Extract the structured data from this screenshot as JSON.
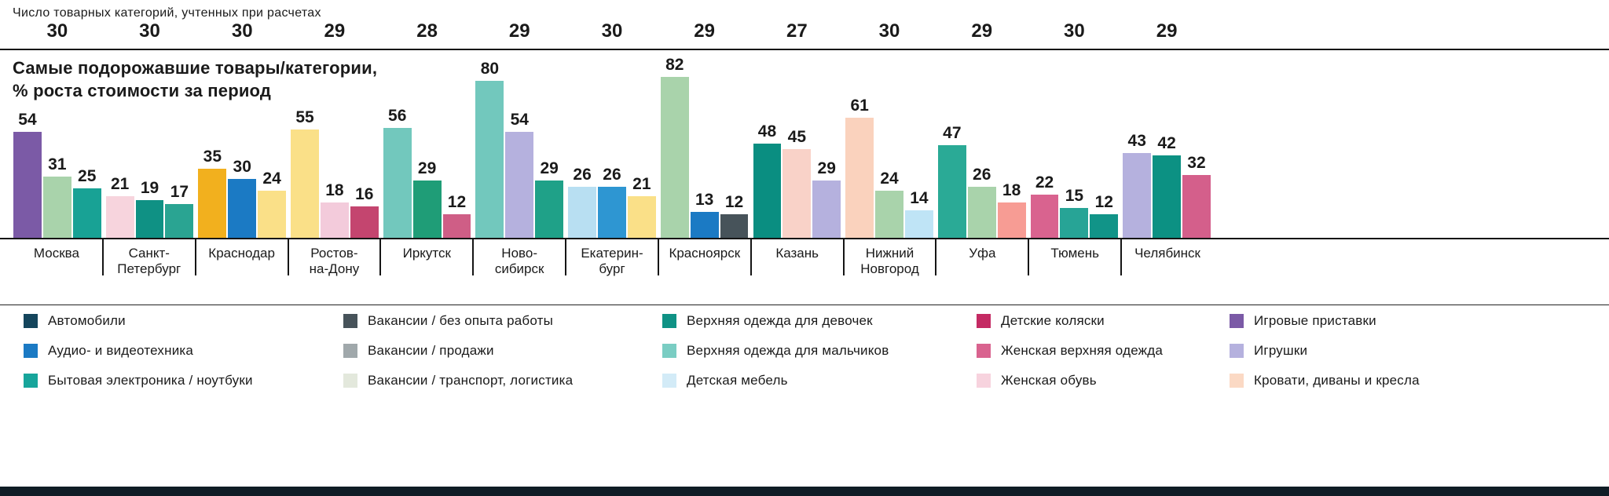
{
  "header": {
    "title": "Число товарных категорий, учтенных при расчетах"
  },
  "chart_data": {
    "type": "bar",
    "title_lines": [
      "Самые подорожавшие товары/категории,",
      "% роста стоимости за период"
    ],
    "unit": "%",
    "ylim": [
      0,
      82
    ],
    "grid": false,
    "legend_position": "bottom",
    "cities": [
      {
        "name": "Москва",
        "label_lines": [
          "Москва"
        ],
        "categories_count": 30,
        "bars": [
          {
            "value": 54,
            "color": "#7b5aa6"
          },
          {
            "value": 31,
            "color": "#a9d3ab"
          },
          {
            "value": 25,
            "color": "#18a295"
          }
        ]
      },
      {
        "name": "Санкт-Петербург",
        "label_lines": [
          "Санкт-",
          "Петербург"
        ],
        "categories_count": 30,
        "bars": [
          {
            "value": 21,
            "color": "#f7d4dd"
          },
          {
            "value": 19,
            "color": "#0f9184"
          },
          {
            "value": 17,
            "color": "#2aa492"
          }
        ]
      },
      {
        "name": "Краснодар",
        "label_lines": [
          "Краснодар"
        ],
        "categories_count": 30,
        "bars": [
          {
            "value": 35,
            "color": "#f2b01e"
          },
          {
            "value": 30,
            "color": "#1b7ac4"
          },
          {
            "value": 24,
            "color": "#fae088"
          }
        ]
      },
      {
        "name": "Ростов-на-Дону",
        "label_lines": [
          "Ростов-",
          "на-Дону"
        ],
        "categories_count": 29,
        "bars": [
          {
            "value": 55,
            "color": "#fae088"
          },
          {
            "value": 18,
            "color": "#f3cbdb"
          },
          {
            "value": 16,
            "color": "#c4456f"
          }
        ]
      },
      {
        "name": "Иркутск",
        "label_lines": [
          "Иркутск"
        ],
        "categories_count": 28,
        "bars": [
          {
            "value": 56,
            "color": "#72c8bd"
          },
          {
            "value": 29,
            "color": "#1f9d77"
          },
          {
            "value": 12,
            "color": "#cf5e86"
          }
        ]
      },
      {
        "name": "Новосибирск",
        "label_lines": [
          "Ново-",
          "сибирск"
        ],
        "categories_count": 29,
        "bars": [
          {
            "value": 80,
            "color": "#72c8bd"
          },
          {
            "value": 54,
            "color": "#b5b1de"
          },
          {
            "value": 29,
            "color": "#1fa188"
          }
        ]
      },
      {
        "name": "Екатеринбург",
        "label_lines": [
          "Екатерин-",
          "бург"
        ],
        "categories_count": 30,
        "bars": [
          {
            "value": 26,
            "color": "#b8dff2"
          },
          {
            "value": 26,
            "color": "#2e96d2"
          },
          {
            "value": 21,
            "color": "#fae088"
          }
        ]
      },
      {
        "name": "Красноярск",
        "label_lines": [
          "Красноярск"
        ],
        "categories_count": 29,
        "bars": [
          {
            "value": 82,
            "color": "#a9d3ab"
          },
          {
            "value": 13,
            "color": "#1b7ac4"
          },
          {
            "value": 12,
            "color": "#47535a"
          }
        ]
      },
      {
        "name": "Казань",
        "label_lines": [
          "Казань"
        ],
        "categories_count": 27,
        "bars": [
          {
            "value": 48,
            "color": "#0a8e81"
          },
          {
            "value": 45,
            "color": "#f9d2c8"
          },
          {
            "value": 29,
            "color": "#b5b1de"
          }
        ]
      },
      {
        "name": "Нижний Новгород",
        "label_lines": [
          "Нижний",
          "Новгород"
        ],
        "categories_count": 30,
        "bars": [
          {
            "value": 61,
            "color": "#fad2bd"
          },
          {
            "value": 24,
            "color": "#a9d3ab"
          },
          {
            "value": 14,
            "color": "#bfe4f6"
          }
        ]
      },
      {
        "name": "Уфа",
        "label_lines": [
          "Уфа"
        ],
        "categories_count": 29,
        "bars": [
          {
            "value": 47,
            "color": "#2aaa96"
          },
          {
            "value": 26,
            "color": "#a9d3ab"
          },
          {
            "value": 18,
            "color": "#f79c94"
          }
        ]
      },
      {
        "name": "Тюмень",
        "label_lines": [
          "Тюмень"
        ],
        "categories_count": 30,
        "bars": [
          {
            "value": 22,
            "color": "#d9638f"
          },
          {
            "value": 15,
            "color": "#27a496"
          },
          {
            "value": 12,
            "color": "#119488"
          }
        ]
      },
      {
        "name": "Челябинск",
        "label_lines": [
          "Челябинск"
        ],
        "categories_count": 29,
        "bars": [
          {
            "value": 43,
            "color": "#b5b1de"
          },
          {
            "value": 42,
            "color": "#0c9183"
          },
          {
            "value": 32,
            "color": "#d45f8b"
          }
        ]
      }
    ]
  },
  "legend": {
    "columns": [
      [
        {
          "label": "Автомобили",
          "color": "#14455c"
        },
        {
          "label": "Аудио- и видеотехника",
          "color": "#1b7ac4"
        },
        {
          "label": "Бытовая электроника / ноутбуки",
          "color": "#17a59b"
        }
      ],
      [
        {
          "label": "Вакансии / без опыта работы",
          "color": "#47535a"
        },
        {
          "label": "Вакансии / продажи",
          "color": "#a0a8ab"
        },
        {
          "label": "Вакансии / транспорт, логистика",
          "color": "#e3e8dc"
        }
      ],
      [
        {
          "label": "Верхняя одежда для девочек",
          "color": "#0f9285"
        },
        {
          "label": "Верхняя одежда для мальчиков",
          "color": "#7acdc3"
        },
        {
          "label": "Детская мебель",
          "color": "#d3ebf7"
        }
      ],
      [
        {
          "label": "Детские коляски",
          "color": "#c42a63"
        },
        {
          "label": "Женская верхняя одежда",
          "color": "#d9638f"
        },
        {
          "label": "Женская обувь",
          "color": "#f7d3de"
        }
      ],
      [
        {
          "label": "Игровые приставки",
          "color": "#7b5aa6"
        },
        {
          "label": "Игрушки",
          "color": "#b5b1de"
        },
        {
          "label": "Кровати, диваны и кресла",
          "color": "#fbd9c4"
        }
      ]
    ]
  }
}
